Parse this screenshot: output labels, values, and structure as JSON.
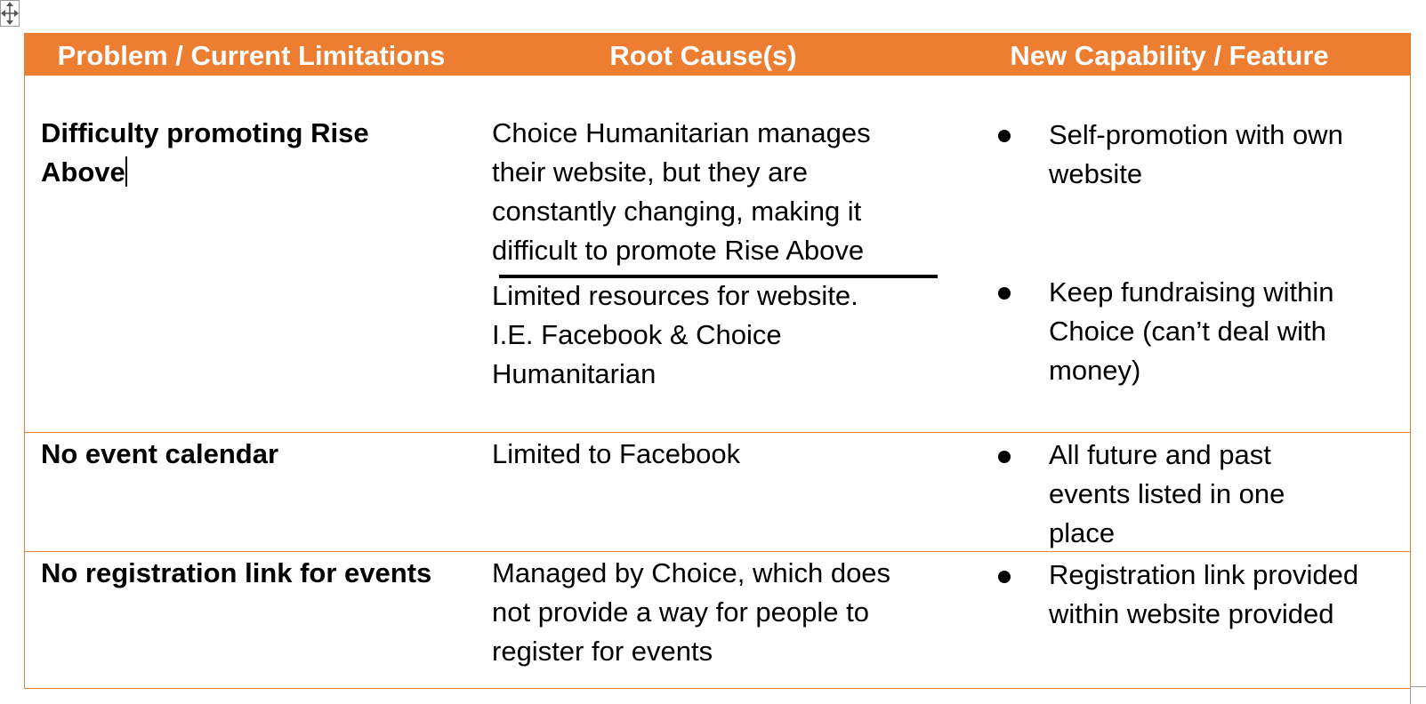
{
  "table": {
    "accent_color": "#ED7D31",
    "headers": [
      "Problem / Current Limitations",
      "Root Cause(s)",
      "New Capability / Feature"
    ],
    "rows": [
      {
        "problem": "Difficulty promoting Rise Above",
        "causes": [
          "Choice Humanitarian manages their website, but they are constantly changing, making it difficult to promote Rise Above",
          "Limited resources for website. I.E. Facebook & Choice Humanitarian"
        ],
        "features": [
          "Self-promotion with own website",
          "Keep fundraising within Choice (can’t deal with money)"
        ]
      },
      {
        "problem": "No event calendar",
        "causes": [
          "Limited to Facebook"
        ],
        "features": [
          "All future and past events listed in one place"
        ]
      },
      {
        "problem": "No registration link for events",
        "causes": [
          "Managed by Choice, which does not provide a way for people to register for events"
        ],
        "features": [
          "Registration link provided within website provided"
        ]
      }
    ]
  },
  "icons": {
    "move_handle": "move-arrows-icon",
    "resize_handle": "resize-corner-icon",
    "bullet": "bullet-dot-icon"
  }
}
